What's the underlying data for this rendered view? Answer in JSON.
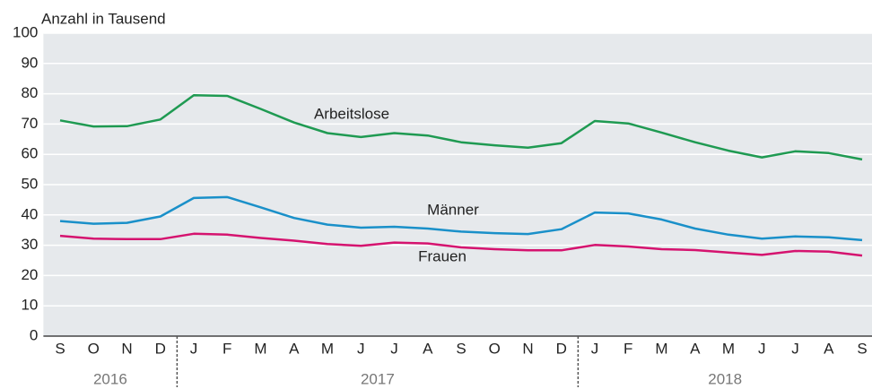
{
  "chart_data": {
    "type": "line",
    "ylabel": "Anzahl in Tausend",
    "categories": [
      "S",
      "O",
      "N",
      "D",
      "J",
      "F",
      "M",
      "A",
      "M",
      "J",
      "J",
      "A",
      "S",
      "O",
      "N",
      "D",
      "J",
      "F",
      "M",
      "A",
      "M",
      "J",
      "J",
      "A",
      "S"
    ],
    "years": [
      "2016",
      "2017",
      "2018"
    ],
    "ylim": [
      0,
      100
    ],
    "yticks": [
      0,
      10,
      20,
      30,
      40,
      50,
      60,
      70,
      80,
      90,
      100
    ],
    "grid": true,
    "series": [
      {
        "name": "Arbeitslose",
        "color": "#1f9a52",
        "values": [
          71.2,
          69.2,
          69.3,
          71.5,
          79.5,
          79.3,
          75,
          70.5,
          67,
          65.7,
          67,
          66.2,
          64,
          63,
          62.2,
          63.7,
          71,
          70.2,
          67.2,
          64,
          61.2,
          59,
          61,
          60.4,
          58.3
        ]
      },
      {
        "name": "Männer",
        "color": "#1a90c9",
        "values": [
          38,
          37.1,
          37.4,
          39.5,
          45.6,
          45.9,
          42.5,
          39,
          36.8,
          35.8,
          36.1,
          35.5,
          34.5,
          34,
          33.7,
          35.3,
          40.8,
          40.5,
          38.5,
          35.5,
          33.5,
          32.2,
          32.9,
          32.6,
          31.7
        ]
      },
      {
        "name": "Frauen",
        "color": "#d5136f",
        "values": [
          33.1,
          32.2,
          32,
          32,
          33.8,
          33.5,
          32.4,
          31.5,
          30.4,
          29.8,
          30.9,
          30.6,
          29.3,
          28.7,
          28.3,
          28.3,
          30.1,
          29.6,
          28.7,
          28.4,
          27.6,
          26.8,
          28.1,
          27.9,
          26.6
        ]
      }
    ]
  }
}
